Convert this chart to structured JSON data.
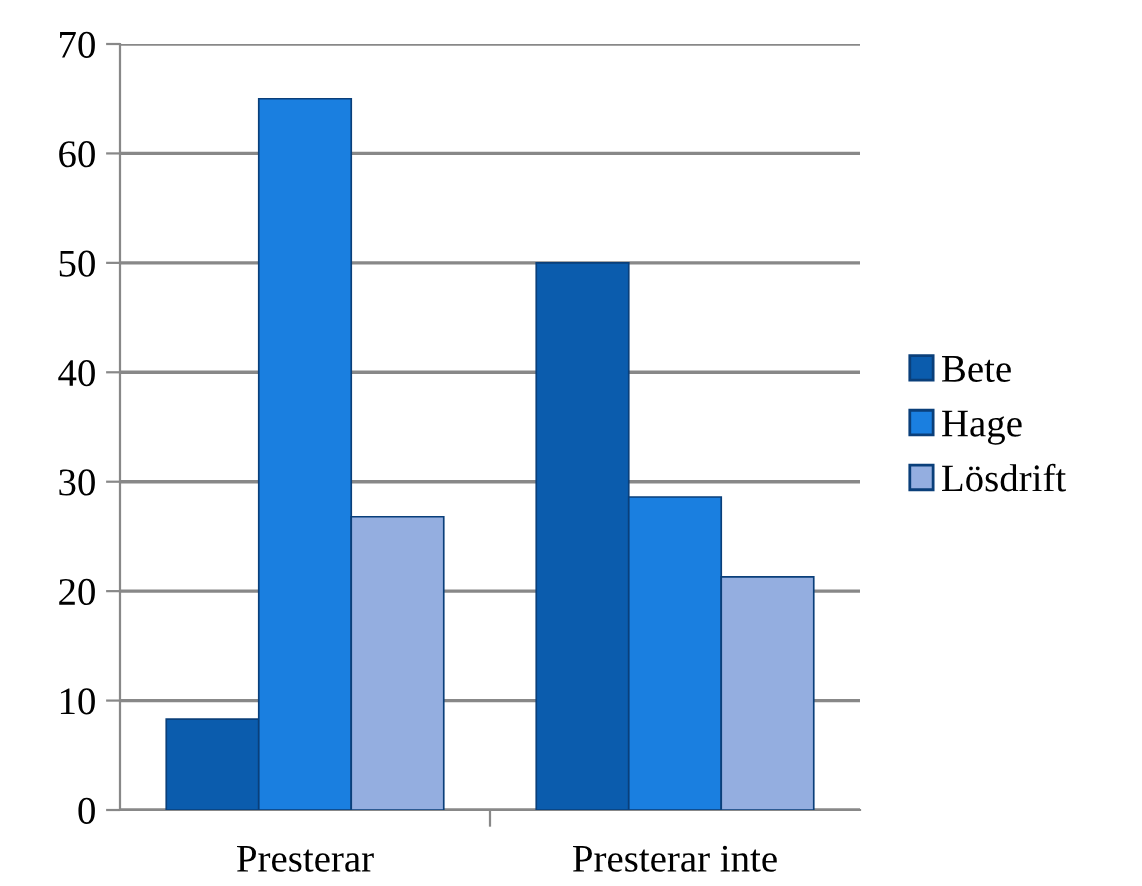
{
  "chart_data": {
    "type": "bar",
    "categories": [
      "Presterar",
      "Presterar inte"
    ],
    "series": [
      {
        "name": "Bete",
        "color": "#0b5cad",
        "values": [
          8.3,
          50
        ]
      },
      {
        "name": "Hage",
        "color": "#1a7fe0",
        "values": [
          65,
          28.6
        ]
      },
      {
        "name": "Lösdrift",
        "color": "#94aee0",
        "values": [
          26.8,
          21.3
        ]
      }
    ],
    "ylim": [
      0,
      70
    ],
    "yticks": [
      0,
      10,
      20,
      30,
      40,
      50,
      60,
      70
    ],
    "grid": "y",
    "legend": "right"
  }
}
